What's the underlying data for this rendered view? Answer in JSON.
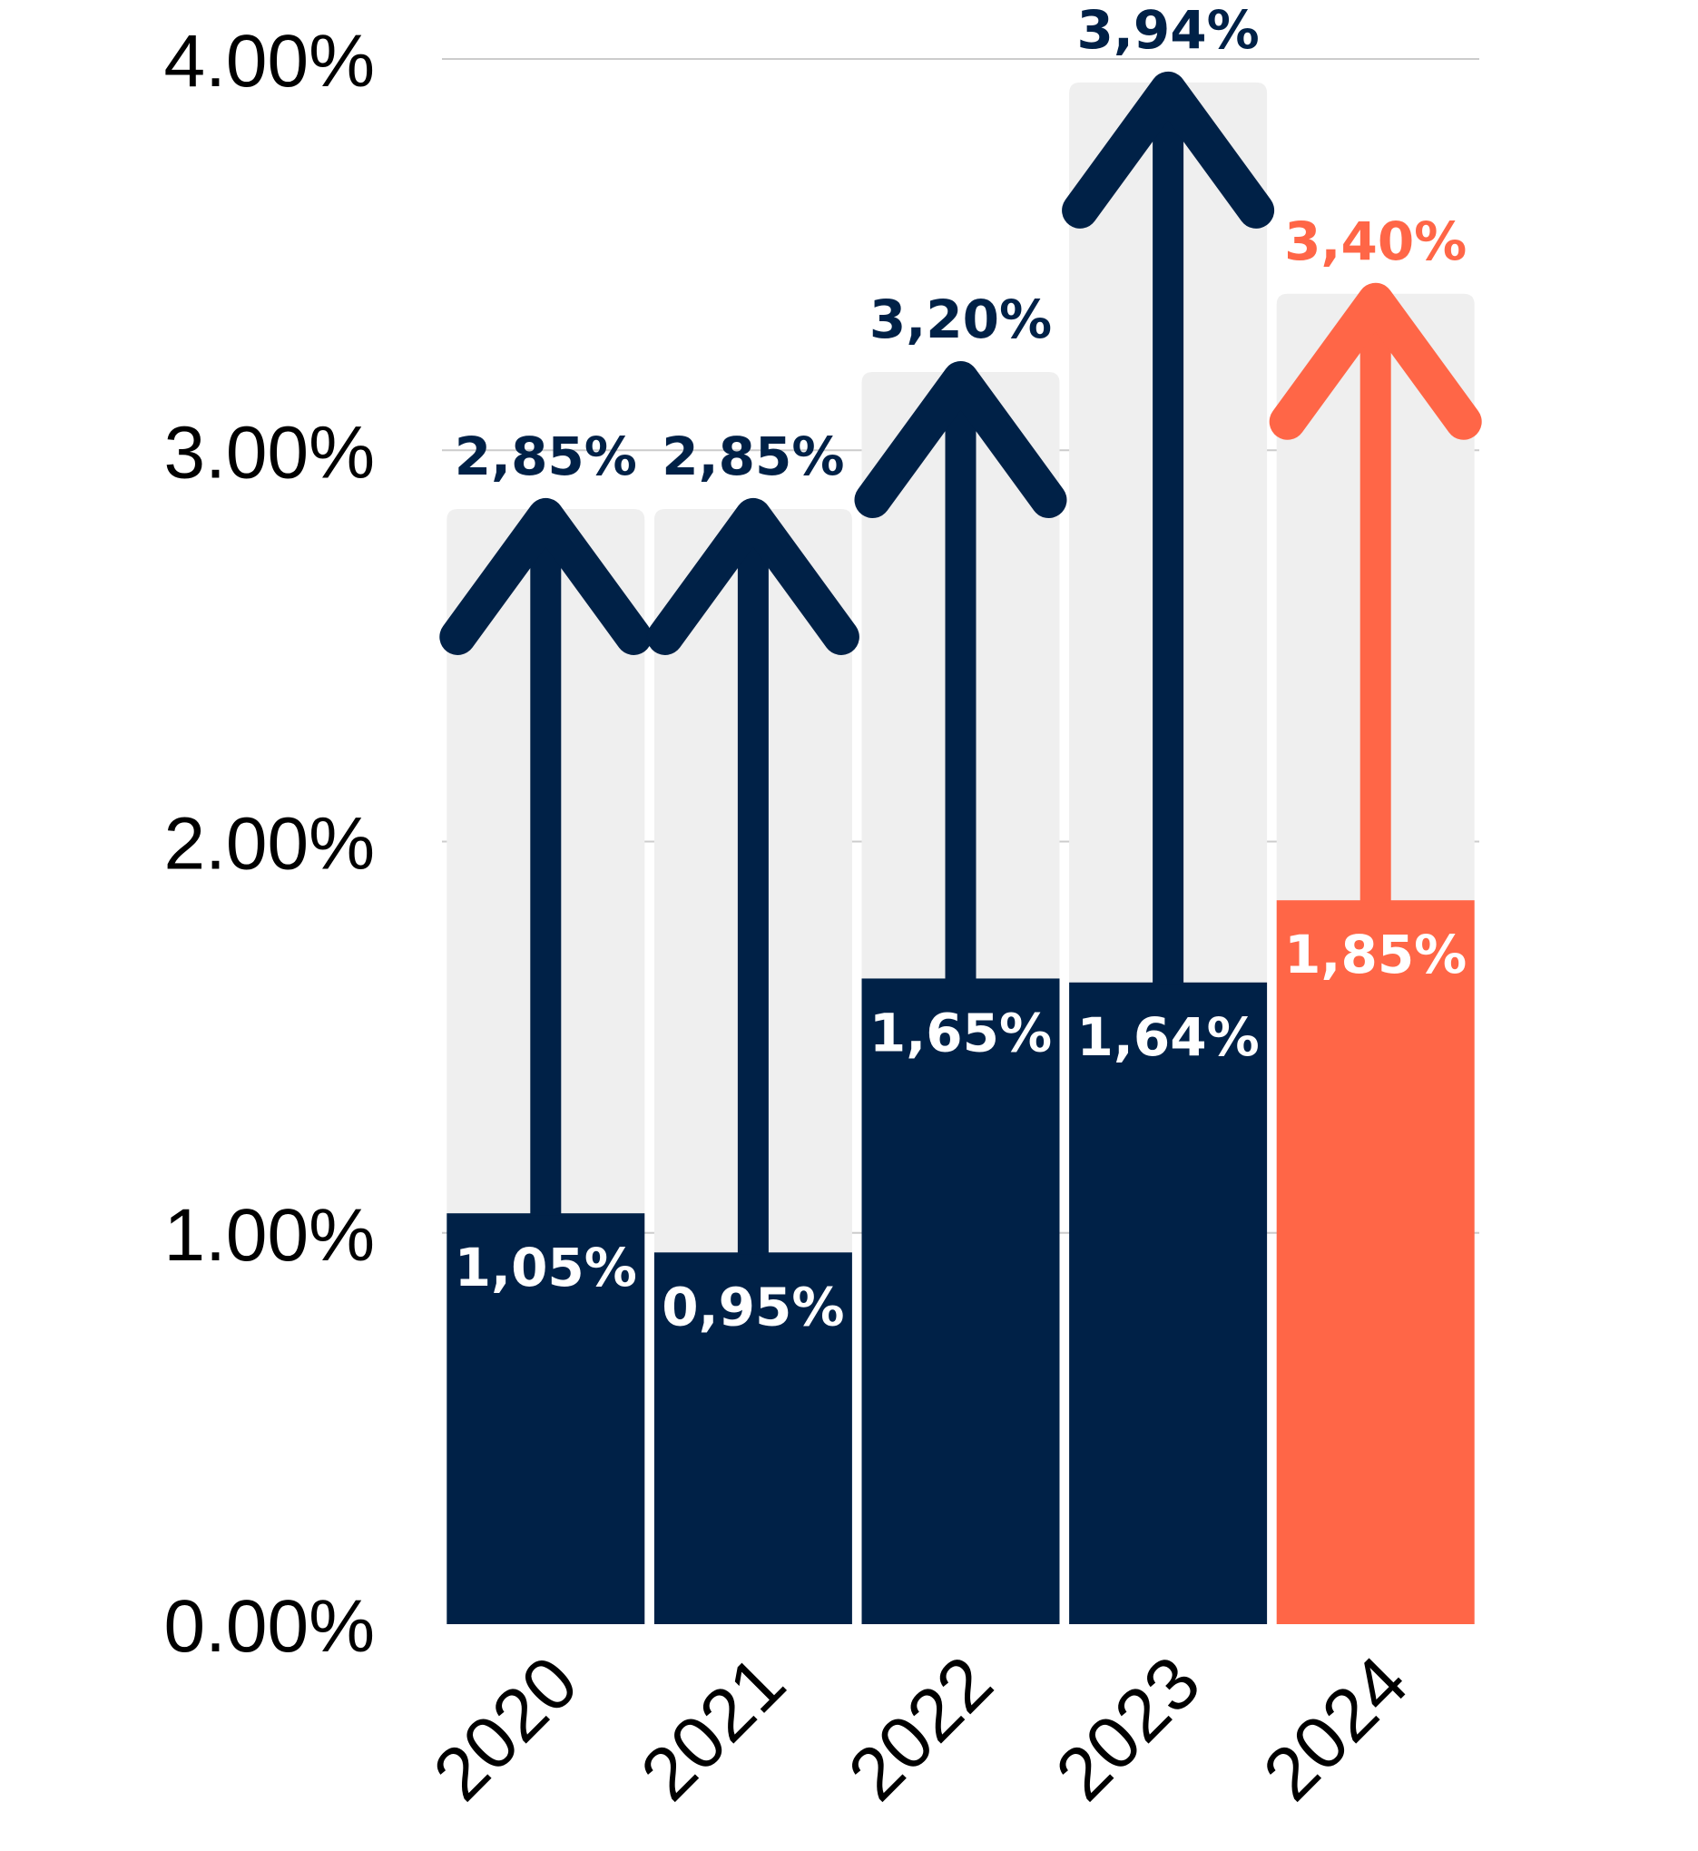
{
  "chart_data": {
    "type": "bar",
    "categories": [
      "2020",
      "2021",
      "2022",
      "2023",
      "2024"
    ],
    "series": [
      {
        "values": [
          1.05,
          0.95,
          1.65,
          1.64,
          1.85
        ],
        "labels": [
          "1,05%",
          "0,95%",
          "1,65%",
          "1,64%",
          "1,85%"
        ]
      },
      {
        "values": [
          2.85,
          2.85,
          3.2,
          3.94,
          3.4
        ],
        "labels": [
          "2,85%",
          "2,85%",
          "3,20%",
          "3,94%",
          "3,40%"
        ]
      }
    ],
    "y_ticks": [
      0,
      1,
      2,
      3,
      4
    ],
    "y_tick_labels": [
      "0.00%",
      "1.00%",
      "2.00%",
      "3.00%",
      "4.00%"
    ],
    "ylim": [
      0,
      4
    ],
    "grid": true,
    "colors": {
      "default": "#002147",
      "highlight": "#ff6647",
      "target_background": "#efefef",
      "gridline": "#cccccc",
      "label_inside": "#ffffff"
    },
    "highlight_category": "2024",
    "title": "",
    "xlabel": "",
    "ylabel": ""
  }
}
